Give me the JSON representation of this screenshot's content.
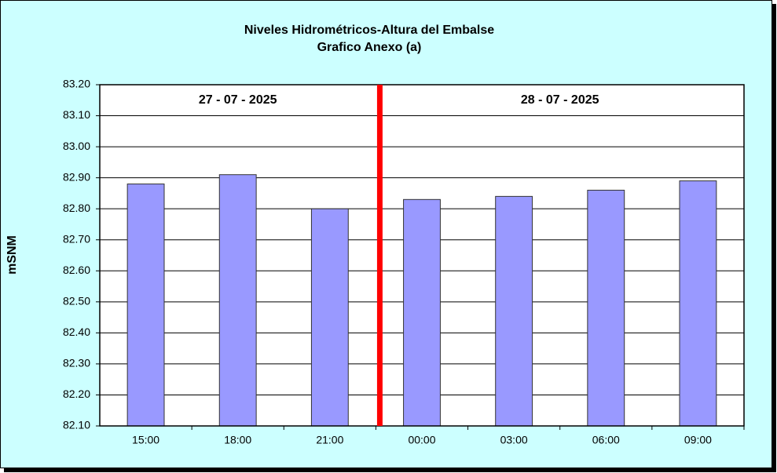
{
  "chart_data": {
    "type": "bar",
    "title": "Niveles Hidrométricos-Altura del Embalse",
    "subtitle": "Grafico Anexo (a)",
    "y_label": "mSNM",
    "categories": [
      "15:00",
      "18:00",
      "21:00",
      "00:00",
      "03:00",
      "06:00",
      "09:00"
    ],
    "values": [
      82.88,
      82.91,
      82.8,
      82.83,
      82.84,
      82.86,
      82.89
    ],
    "color": "#9999ff",
    "groups": [
      {
        "label": "27 - 07 - 2025",
        "size": 3
      },
      {
        "label": "28 - 07 - 2025",
        "size": 4
      }
    ],
    "separator_color": "#ff0000",
    "ylim": [
      82.1,
      83.2
    ],
    "yticks": [
      {
        "value": 82.1,
        "label": "82.10"
      },
      {
        "value": 82.2,
        "label": "82.20"
      },
      {
        "value": 82.3,
        "label": "82.30"
      },
      {
        "value": 82.4,
        "label": "82.40"
      },
      {
        "value": 82.5,
        "label": "82.50"
      },
      {
        "value": 82.6,
        "label": "82.60"
      },
      {
        "value": 82.7,
        "label": "82.70"
      },
      {
        "value": 82.8,
        "label": "82.80"
      },
      {
        "value": 82.9,
        "label": "82.90"
      },
      {
        "value": 83.0,
        "label": "83.00"
      },
      {
        "value": 83.1,
        "label": "83.10"
      },
      {
        "value": 83.2,
        "label": "83.20"
      }
    ],
    "grid": true
  }
}
